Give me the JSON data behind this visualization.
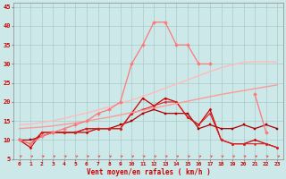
{
  "xlabel": "Vent moyen/en rafales ( km/h )",
  "bg_color": "#cce8e8",
  "grid_color": "#aacccc",
  "x_values": [
    0,
    1,
    2,
    3,
    4,
    5,
    6,
    7,
    8,
    9,
    10,
    11,
    12,
    13,
    14,
    15,
    16,
    17,
    18,
    19,
    20,
    21,
    22,
    23
  ],
  "ylim": [
    5,
    46
  ],
  "yticks": [
    5,
    10,
    15,
    20,
    25,
    30,
    35,
    40,
    45
  ],
  "series": [
    {
      "name": "line_dark_red_flat",
      "color": "#cc0000",
      "lw": 0.9,
      "marker": "D",
      "ms": 1.5,
      "data": [
        10,
        8,
        12,
        12,
        12,
        12,
        12,
        13,
        13,
        13,
        17,
        21,
        19,
        21,
        20,
        16,
        14,
        18,
        10,
        9,
        9,
        10,
        9,
        8
      ]
    },
    {
      "name": "line_dark_red2",
      "color": "#aa0000",
      "lw": 0.9,
      "marker": "s",
      "ms": 1.5,
      "data": [
        10,
        10,
        11,
        12,
        12,
        12,
        13,
        13,
        13,
        14,
        15,
        17,
        18,
        17,
        17,
        17,
        13,
        14,
        13,
        13,
        14,
        13,
        14,
        13
      ]
    },
    {
      "name": "line_red_medium",
      "color": "#dd2222",
      "lw": 0.8,
      "marker": "s",
      "ms": 1.2,
      "data": [
        10,
        9,
        12,
        12,
        12,
        12,
        13,
        13,
        13,
        13,
        17,
        18,
        19,
        20,
        20,
        16,
        14,
        17,
        10,
        9,
        9,
        9,
        9,
        8
      ]
    },
    {
      "name": "line_diagonal_light",
      "color": "#ff9999",
      "lw": 1.0,
      "marker": null,
      "ms": 0,
      "data": [
        13.0,
        13.2,
        13.4,
        13.7,
        14.1,
        14.5,
        15.0,
        15.5,
        16.0,
        16.6,
        17.2,
        17.8,
        18.4,
        19.0,
        19.6,
        20.2,
        20.8,
        21.4,
        22.0,
        22.5,
        23.0,
        23.5,
        24.0,
        24.5
      ]
    },
    {
      "name": "line_diagonal_very_light",
      "color": "#ffbbbb",
      "lw": 1.0,
      "marker": null,
      "ms": 0,
      "data": [
        14.0,
        14.2,
        14.6,
        15.1,
        15.7,
        16.4,
        17.1,
        17.9,
        18.7,
        19.6,
        20.5,
        21.5,
        22.5,
        23.6,
        24.7,
        25.8,
        26.9,
        28.0,
        29.0,
        29.8,
        30.4,
        30.6,
        30.6,
        30.5
      ]
    },
    {
      "name": "line_peak_salmon",
      "color": "#ff7777",
      "lw": 0.9,
      "marker": "D",
      "ms": 2.0,
      "data": [
        10,
        9,
        11,
        12,
        13,
        14,
        15,
        17,
        18,
        20,
        30,
        35,
        41,
        41,
        35,
        35,
        30,
        30,
        null,
        null,
        null,
        22,
        12,
        null
      ]
    }
  ]
}
